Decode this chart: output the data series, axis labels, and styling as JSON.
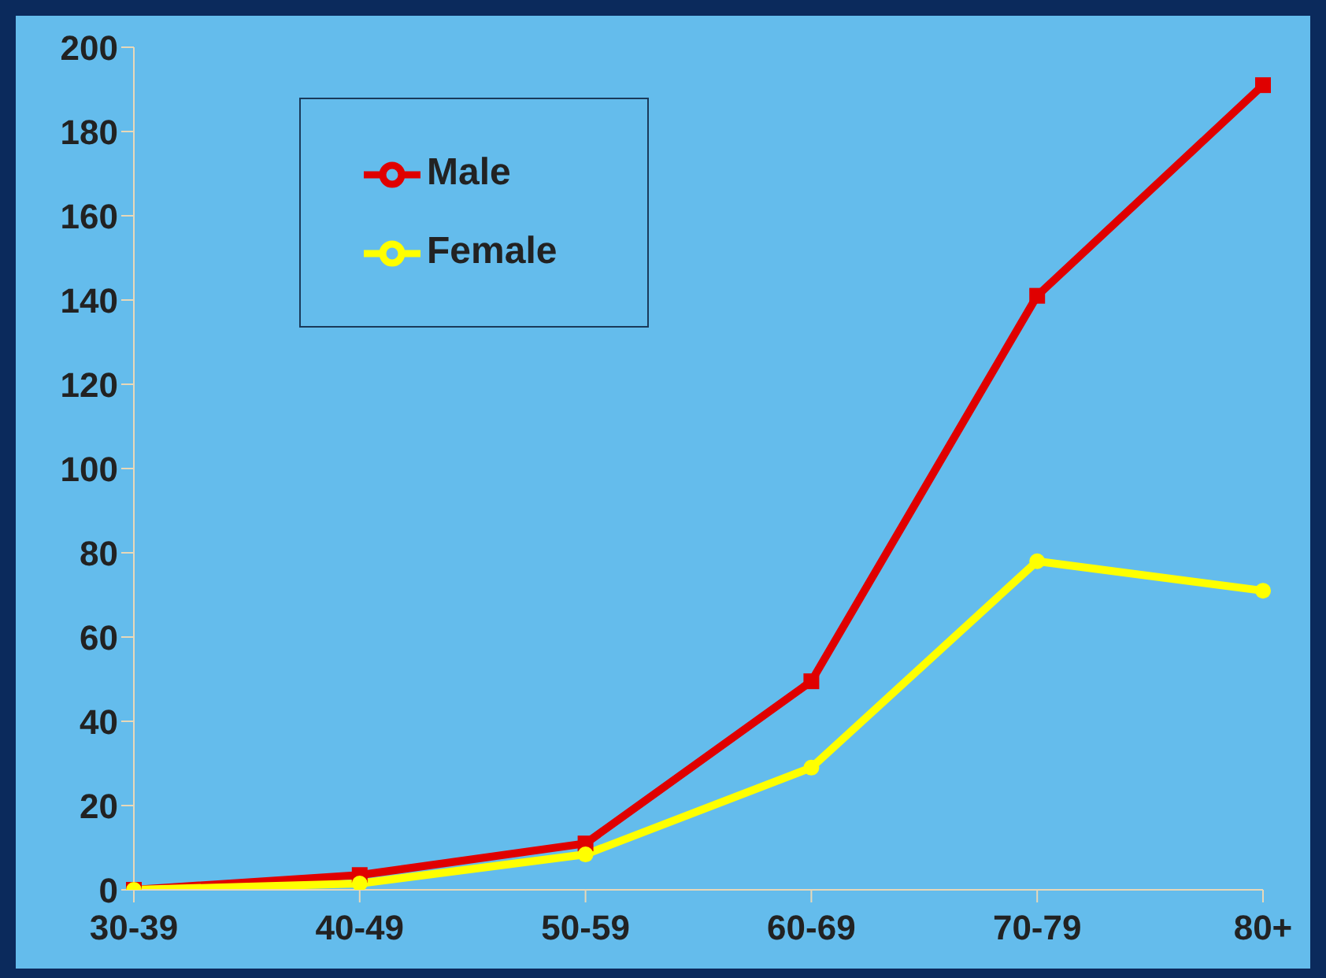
{
  "chart_data": {
    "type": "line",
    "categories": [
      "30-39",
      "40-49",
      "50-59",
      "60-69",
      "70-79",
      "80+"
    ],
    "series": [
      {
        "name": "Male",
        "color": "#e00000",
        "marker": "square",
        "values": [
          0,
          3.5,
          11,
          49.5,
          141,
          191
        ]
      },
      {
        "name": "Female",
        "color": "#ffff00",
        "marker": "circle",
        "values": [
          0,
          1.5,
          8.4,
          29,
          78,
          71
        ]
      }
    ],
    "ylim": [
      0,
      200
    ],
    "yticks": [
      0,
      20,
      40,
      60,
      80,
      100,
      120,
      140,
      160,
      180,
      200
    ],
    "grid": false,
    "legend": "top left"
  }
}
